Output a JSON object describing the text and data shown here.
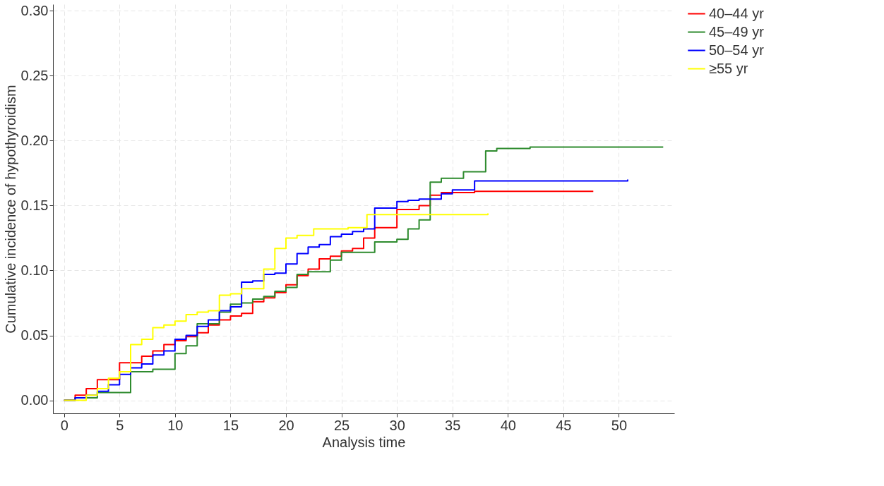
{
  "chart_data": {
    "type": "step",
    "xlabel": "Analysis time",
    "ylabel": "Cumulative incidence of hypothyroidism",
    "xlim": [
      -1,
      55
    ],
    "ylim": [
      -0.01,
      0.305
    ],
    "xticks": [
      0,
      5,
      10,
      15,
      20,
      25,
      30,
      35,
      40,
      45,
      50
    ],
    "yticks": [
      {
        "value": 0,
        "label": "0.00"
      },
      {
        "value": 0.05,
        "label": "0.05"
      },
      {
        "value": 0.1,
        "label": "0.10"
      },
      {
        "value": 0.15,
        "label": "0.15"
      },
      {
        "value": 0.2,
        "label": "0.20"
      },
      {
        "value": 0.25,
        "label": "0.25"
      },
      {
        "value": 0.3,
        "label": "0.30"
      }
    ],
    "grid": true,
    "legend": "right",
    "series": [
      {
        "name": "40–44 yr",
        "color": "#ff0000",
        "x": [
          0,
          1,
          2,
          3,
          5,
          7,
          8,
          9,
          10,
          11,
          12,
          13,
          14,
          15,
          16,
          17,
          18,
          19,
          20,
          21,
          22,
          23,
          24,
          25,
          26,
          27,
          28,
          30,
          32,
          33,
          34,
          37,
          47.7
        ],
        "values": [
          0,
          0.004,
          0.009,
          0.016,
          0.029,
          0.034,
          0.038,
          0.043,
          0.046,
          0.049,
          0.052,
          0.058,
          0.062,
          0.065,
          0.067,
          0.076,
          0.079,
          0.083,
          0.089,
          0.096,
          0.101,
          0.109,
          0.111,
          0.115,
          0.117,
          0.125,
          0.133,
          0.147,
          0.15,
          0.158,
          0.16,
          0.161,
          0.161
        ]
      },
      {
        "name": "45–49 yr",
        "color": "#2e8b2e",
        "x": [
          0,
          1,
          3,
          6,
          8,
          10,
          11,
          12,
          14,
          15,
          16,
          17,
          18,
          19,
          20,
          21,
          22,
          24,
          25,
          28,
          30,
          31,
          32,
          33,
          34,
          36,
          38,
          39,
          42,
          54
        ],
        "values": [
          0,
          0.002,
          0.006,
          0.022,
          0.024,
          0.036,
          0.042,
          0.059,
          0.068,
          0.074,
          0.075,
          0.078,
          0.08,
          0.084,
          0.087,
          0.097,
          0.099,
          0.108,
          0.114,
          0.122,
          0.124,
          0.132,
          0.139,
          0.168,
          0.171,
          0.176,
          0.192,
          0.194,
          0.195,
          0.195
        ]
      },
      {
        "name": "50–54 yr",
        "color": "#0000ff",
        "x": [
          0,
          1,
          2,
          3,
          4,
          5,
          6,
          7,
          8,
          9,
          10,
          11,
          12,
          13,
          14,
          15,
          16,
          17,
          18,
          19,
          20,
          21,
          22,
          23,
          24,
          25,
          26,
          27,
          28,
          30,
          31,
          32,
          34,
          35,
          37,
          50.8
        ],
        "values": [
          0,
          0.002,
          0.004,
          0.007,
          0.012,
          0.02,
          0.025,
          0.028,
          0.035,
          0.038,
          0.047,
          0.05,
          0.057,
          0.062,
          0.069,
          0.072,
          0.091,
          0.092,
          0.097,
          0.098,
          0.105,
          0.113,
          0.118,
          0.12,
          0.126,
          0.128,
          0.13,
          0.132,
          0.148,
          0.153,
          0.154,
          0.155,
          0.159,
          0.162,
          0.169,
          0.17
        ]
      },
      {
        "name": "≥55 yr",
        "color": "#ffff00",
        "x": [
          0,
          2,
          3,
          4,
          5,
          6,
          7,
          8,
          9,
          10,
          11,
          12,
          13,
          14,
          15,
          16,
          18,
          19,
          20,
          21,
          22.5,
          25.6,
          27.3,
          38.2
        ],
        "values": [
          0,
          0.004,
          0.009,
          0.017,
          0.022,
          0.043,
          0.047,
          0.056,
          0.058,
          0.061,
          0.066,
          0.068,
          0.069,
          0.081,
          0.082,
          0.086,
          0.101,
          0.117,
          0.125,
          0.127,
          0.132,
          0.133,
          0.143,
          0.144
        ]
      }
    ]
  }
}
